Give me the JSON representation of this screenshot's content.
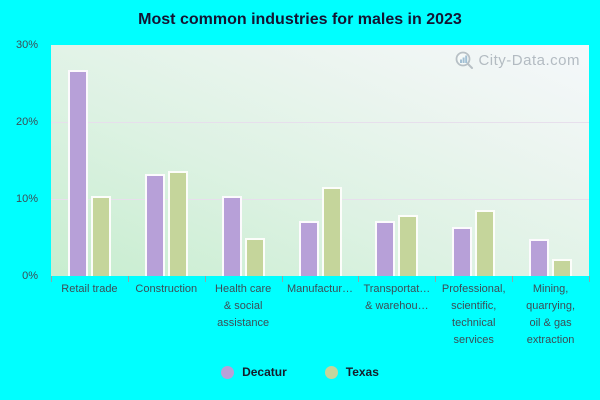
{
  "title": "Most common industries for males in 2023",
  "watermark": {
    "text": "City-Data.com"
  },
  "colors": {
    "background": "#00ffff",
    "decatur": "#b7a0d8",
    "texas": "#c5d59b",
    "grid": "#e7dfec",
    "axis_text": "#3c4d56",
    "title_text": "#141432",
    "legend_text": "#151d2b",
    "watermark_text": "#a4adb5"
  },
  "legend": {
    "items": [
      {
        "label": "Decatur",
        "color": "#b7a0d8"
      },
      {
        "label": "Texas",
        "color": "#c5d59b"
      }
    ]
  },
  "chart_data": {
    "type": "bar",
    "title": "Most common industries for males in 2023",
    "categories": [
      "Retail trade",
      "Construction",
      "Health care & social assistance",
      "Manufacturing",
      "Transportation & warehousing",
      "Professional, scientific, technical services",
      "Mining, quarrying, oil & gas extraction"
    ],
    "category_display_lines": [
      [
        "Retail trade"
      ],
      [
        "Construction"
      ],
      [
        "Health care",
        "& social",
        "assistance"
      ],
      [
        "Manufactur…"
      ],
      [
        "Transportat…",
        "& warehou…"
      ],
      [
        "Professional,",
        "scientific,",
        "technical",
        "services"
      ],
      [
        "Mining,",
        "quarrying,",
        "oil & gas",
        "extraction"
      ]
    ],
    "series": [
      {
        "name": "Decatur",
        "color": "#b7a0d8",
        "values": [
          26.8,
          13.2,
          10.4,
          7.2,
          7.2,
          6.4,
          4.8
        ]
      },
      {
        "name": "Texas",
        "color": "#c5d59b",
        "values": [
          10.4,
          13.7,
          5.0,
          11.6,
          7.9,
          8.6,
          2.2
        ]
      }
    ],
    "ylabel": "",
    "xlabel": "",
    "ylim": [
      0,
      30
    ],
    "ytick_labels": [
      "0%",
      "10%",
      "20%",
      "30%"
    ],
    "grid": "horizontal",
    "legend_position": "bottom"
  }
}
